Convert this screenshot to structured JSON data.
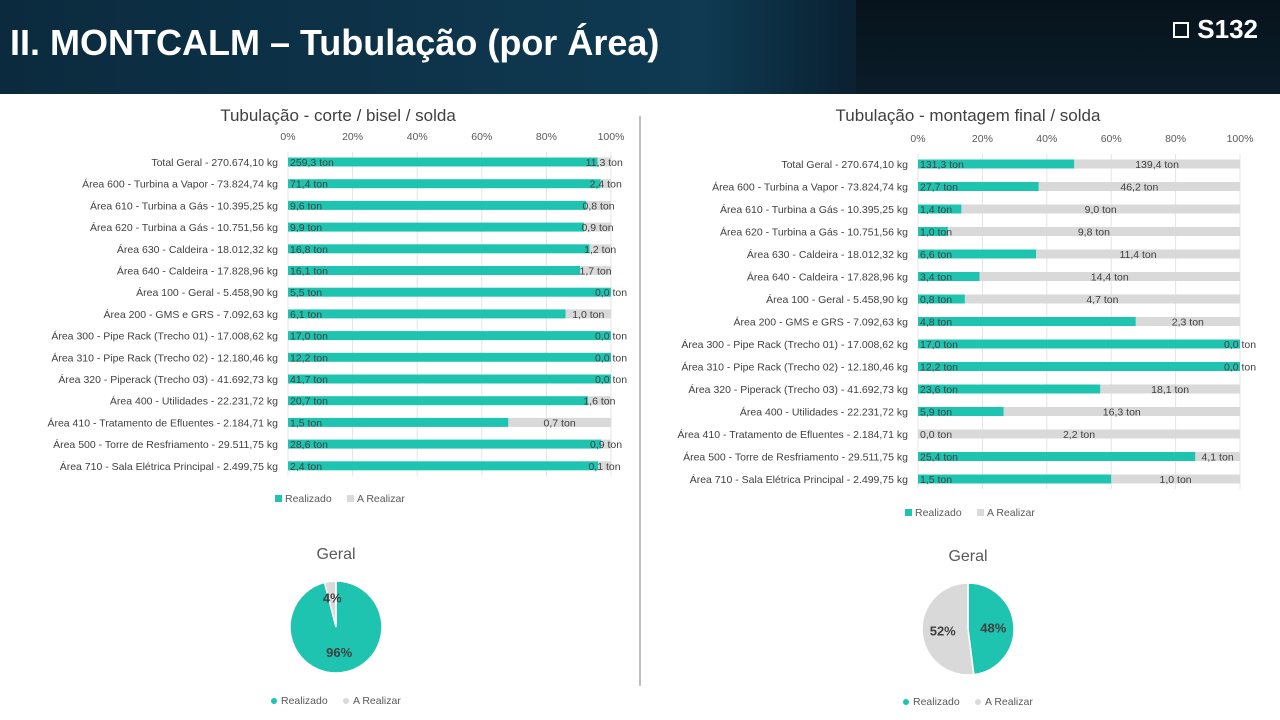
{
  "header": {
    "title": "II. MONTCALM – Tubulação (por Área)",
    "code": "S132"
  },
  "colors": {
    "realizado": "#1ec4b0",
    "a_realizar": "#d9d9d9"
  },
  "legend": {
    "realizado": "Realizado",
    "a_realizar": "A Realizar"
  },
  "chart_data": [
    {
      "type": "bar",
      "orientation": "horizontal",
      "stacked": "percent",
      "title": "Tubulação - corte / bisel / solda",
      "xticks": [
        "0%",
        "20%",
        "40%",
        "60%",
        "80%",
        "100%"
      ],
      "xlim": [
        0,
        100
      ],
      "categories": [
        "Total Geral - 270.674,10 kg",
        "Área 600 - Turbina a Vapor - 73.824,74 kg",
        "Área 610 - Turbina a Gás - 10.395,25 kg",
        "Área 620 - Turbina a Gás - 10.751,56 kg",
        "Área 630 - Caldeira - 18.012,32 kg",
        "Área 640 - Caldeira - 17.828,96 kg",
        "Área 100 - Geral - 5.458,90 kg",
        "Área 200 - GMS e GRS - 7.092,63 kg",
        "Área 300 - Pipe Rack (Trecho 01) - 17.008,62 kg",
        "Área 310 - Pipe Rack (Trecho 02) - 12.180,46 kg",
        "Área 320 - Piperack (Trecho 03) - 41.692,73 kg",
        "Área 400 - Utilidades - 22.231,72 kg",
        "Área 410 - Tratamento de Efluentes - 2.184,71 kg",
        "Área 500 - Torre de Resfriamento - 29.511,75 kg",
        "Área 710 - Sala Elétrica Principal - 2.499,75 kg"
      ],
      "series": [
        {
          "name": "Realizado",
          "values": [
            259.3,
            71.4,
            9.6,
            9.9,
            16.8,
            16.1,
            5.5,
            6.1,
            17.0,
            12.2,
            41.7,
            20.7,
            1.5,
            28.6,
            2.4
          ],
          "labels": [
            "259,3 ton",
            "71,4 ton",
            "9,6 ton",
            "9,9 ton",
            "16,8 ton",
            "16,1 ton",
            "5,5 ton",
            "6,1 ton",
            "17,0 ton",
            "12,2 ton",
            "41,7 ton",
            "20,7 ton",
            "1,5 ton",
            "28,6 ton",
            "2,4 ton"
          ]
        },
        {
          "name": "A Realizar",
          "values": [
            11.3,
            2.4,
            0.8,
            0.9,
            1.2,
            1.7,
            0.0,
            1.0,
            0.0,
            0.0,
            0.0,
            1.6,
            0.7,
            0.9,
            0.1
          ],
          "labels": [
            "11,3 ton",
            "2,4 ton",
            "0,8 ton",
            "0,9 ton",
            "1,2 ton",
            "1,7 ton",
            "0,0 ton",
            "1,0 ton",
            "0,0 ton",
            "0,0 ton",
            "0,0 ton",
            "1,6 ton",
            "0,7 ton",
            "0,9 ton",
            "0,1 ton"
          ]
        }
      ]
    },
    {
      "type": "bar",
      "orientation": "horizontal",
      "stacked": "percent",
      "title": "Tubulação - montagem final / solda",
      "xticks": [
        "0%",
        "20%",
        "40%",
        "60%",
        "80%",
        "100%"
      ],
      "xlim": [
        0,
        100
      ],
      "categories": [
        "Total Geral - 270.674,10 kg",
        "Área 600 - Turbina a Vapor - 73.824,74 kg",
        "Área 610 - Turbina a Gás - 10.395,25 kg",
        "Área 620 - Turbina a Gás - 10.751,56 kg",
        "Área 630 - Caldeira - 18.012,32 kg",
        "Área 640 - Caldeira - 17.828,96 kg",
        "Área 100 - Geral - 5.458,90 kg",
        "Área 200 - GMS e GRS - 7.092,63 kg",
        "Área 300 - Pipe Rack (Trecho 01) - 17.008,62 kg",
        "Área 310 - Pipe Rack (Trecho 02) - 12.180,46 kg",
        "Área 320 - Piperack (Trecho 03) - 41.692,73 kg",
        "Área 400 - Utilidades - 22.231,72 kg",
        "Área 410 - Tratamento de Efluentes - 2.184,71 kg",
        "Área 500 - Torre de Resfriamento - 29.511,75 kg",
        "Área 710 - Sala Elétrica Principal - 2.499,75 kg"
      ],
      "series": [
        {
          "name": "Realizado",
          "values": [
            131.3,
            27.7,
            1.4,
            1.0,
            6.6,
            3.4,
            0.8,
            4.8,
            17.0,
            12.2,
            23.6,
            5.9,
            0.0,
            25.4,
            1.5
          ],
          "labels": [
            "131,3 ton",
            "27,7 ton",
            "1,4 ton",
            "1,0 ton",
            "6,6 ton",
            "3,4 ton",
            "0,8 ton",
            "4,8 ton",
            "17,0 ton",
            "12,2 ton",
            "23,6 ton",
            "5,9 ton",
            "0,0 ton",
            "25,4 ton",
            "1,5 ton"
          ]
        },
        {
          "name": "A Realizar",
          "values": [
            139.4,
            46.2,
            9.0,
            9.8,
            11.4,
            14.4,
            4.7,
            2.3,
            0.0,
            0.0,
            18.1,
            16.3,
            2.2,
            4.1,
            1.0
          ],
          "labels": [
            "139,4 ton",
            "46,2 ton",
            "9,0 ton",
            "9,8 ton",
            "11,4 ton",
            "14,4 ton",
            "4,7 ton",
            "2,3 ton",
            "0,0 ton",
            "0,0 ton",
            "18,1 ton",
            "16,3 ton",
            "2,2 ton",
            "4,1 ton",
            "1,0 ton"
          ]
        }
      ]
    },
    {
      "type": "pie",
      "title": "Geral",
      "slices": [
        {
          "name": "Realizado",
          "value": 96,
          "label": "96%"
        },
        {
          "name": "A Realizar",
          "value": 4,
          "label": "4%"
        }
      ]
    },
    {
      "type": "pie",
      "title": "Geral",
      "slices": [
        {
          "name": "Realizado",
          "value": 48,
          "label": "48%"
        },
        {
          "name": "A Realizar",
          "value": 52,
          "label": "52%"
        }
      ]
    }
  ]
}
